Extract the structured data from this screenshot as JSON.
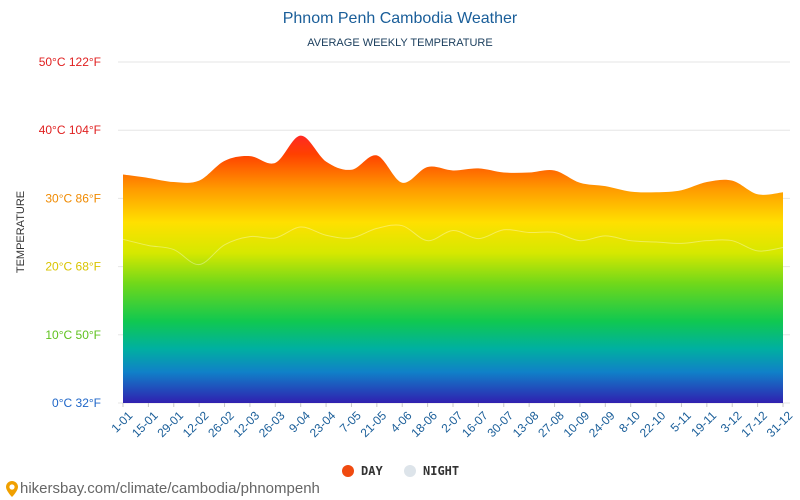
{
  "chart_data": {
    "type": "area",
    "title": "Phnom Penh Cambodia Weather",
    "subtitle": "AVERAGE WEEKLY TEMPERATURE",
    "ylabel": "TEMPERATURE",
    "ylim": [
      0,
      50
    ],
    "yticks": [
      {
        "c": 0,
        "label": "0°C 32°F",
        "color": "#1e66c8"
      },
      {
        "c": 10,
        "label": "10°C 50°F",
        "color": "#5fc21e"
      },
      {
        "c": 20,
        "label": "20°C 68°F",
        "color": "#d9c400"
      },
      {
        "c": 30,
        "label": "30°C 86°F",
        "color": "#f08a00"
      },
      {
        "c": 40,
        "label": "40°C 104°F",
        "color": "#e02020"
      },
      {
        "c": 50,
        "label": "50°C 122°F",
        "color": "#e02020"
      }
    ],
    "categories": [
      "1-01",
      "15-01",
      "29-01",
      "12-02",
      "26-02",
      "12-03",
      "26-03",
      "9-04",
      "23-04",
      "7-05",
      "21-05",
      "4-06",
      "18-06",
      "2-07",
      "16-07",
      "30-07",
      "13-08",
      "27-08",
      "10-09",
      "24-09",
      "8-10",
      "22-10",
      "5-11",
      "19-11",
      "3-12",
      "17-12",
      "31-12"
    ],
    "series": [
      {
        "name": "DAY",
        "color": "#f04a10",
        "values": [
          33.5,
          33.0,
          32.4,
          32.6,
          35.5,
          36.2,
          35.2,
          39.2,
          35.4,
          34.2,
          36.3,
          32.3,
          34.6,
          34.1,
          34.4,
          33.8,
          33.8,
          34.1,
          32.3,
          31.8,
          31.0,
          30.9,
          31.2,
          32.4,
          32.6,
          30.6,
          30.9
        ]
      },
      {
        "name": "NIGHT",
        "color": "#dde4ea",
        "values": [
          24.0,
          23.1,
          22.5,
          20.3,
          23.2,
          24.4,
          24.2,
          25.8,
          24.6,
          24.2,
          25.6,
          26.0,
          23.8,
          25.3,
          24.1,
          25.4,
          25.0,
          25.0,
          23.8,
          24.5,
          23.8,
          23.6,
          23.4,
          23.8,
          23.8,
          22.3,
          22.8
        ]
      }
    ],
    "legend_position": "bottom-center",
    "grid": true
  },
  "footer": {
    "url": "hikersbay.com/climate/cambodia/phnompenh"
  }
}
